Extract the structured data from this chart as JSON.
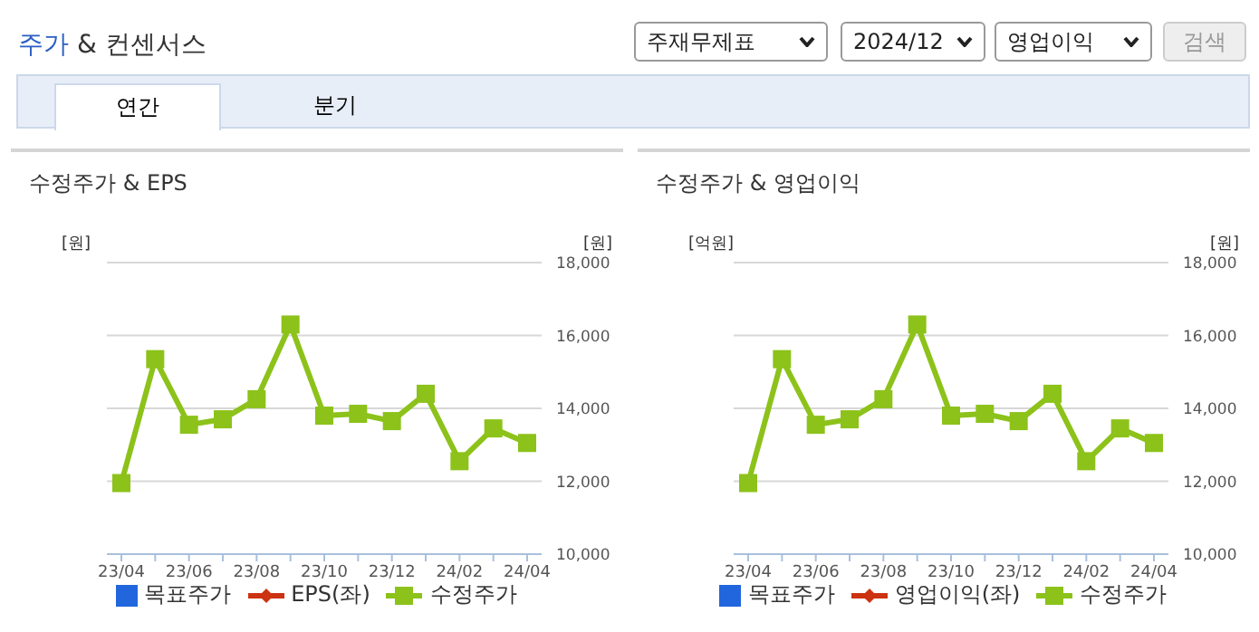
{
  "chart_data": [
    {
      "type": "line",
      "title": "수정주가 & EPS",
      "ylabel": "[원]",
      "y2label": "[원]",
      "annotations": [
        "주가 & 컨센서스",
        "주재무제표",
        "2024/12",
        "영업이익",
        "검색",
        "연간",
        "분기"
      ],
      "categories": [
        "23/04",
        null,
        "23/06",
        null,
        "23/08",
        null,
        "23/10",
        null,
        "23/12",
        null,
        "24/02",
        null,
        "24/04"
      ],
      "series": [
        {
          "name": "목표주가",
          "type": "scatter",
          "marker": "square",
          "color": "#2266dd",
          "values": [
            null,
            null,
            null,
            null,
            null,
            null,
            null,
            null,
            null,
            null,
            null,
            null,
            null
          ]
        },
        {
          "name": "EPS(좌)",
          "marker": "diamond",
          "color": "#cc3311",
          "values": [
            null,
            null,
            null,
            null,
            null,
            null,
            null,
            null,
            null,
            null,
            null,
            null,
            null
          ]
        },
        {
          "name": "수정주가",
          "marker": "square",
          "axis": "y2",
          "color": "#8cc21a",
          "values": [
            11950,
            15350,
            13550,
            13700,
            14250,
            16300,
            13800,
            13850,
            13650,
            14400,
            12550,
            13450,
            13050
          ]
        }
      ],
      "y2lim": [
        10000,
        18000
      ],
      "y2ticks": [
        {
          "value": 10000,
          "label": "10,000"
        },
        {
          "value": 12000,
          "label": "12,000"
        },
        {
          "value": 14000,
          "label": "14,000"
        },
        {
          "value": 16000,
          "label": "16,000"
        },
        {
          "value": 18000,
          "label": "18,000"
        }
      ],
      "grid": "y",
      "legend": "bottom"
    },
    {
      "type": "line",
      "title": "수정주가 & 영업이익",
      "ylabel": "[억원]",
      "y2label": "[원]",
      "categories": [
        "23/04",
        null,
        "23/06",
        null,
        "23/08",
        null,
        "23/10",
        null,
        "23/12",
        null,
        "24/02",
        null,
        "24/04"
      ],
      "series": [
        {
          "name": "목표주가",
          "type": "scatter",
          "marker": "square",
          "color": "#2266dd",
          "values": [
            null,
            null,
            null,
            null,
            null,
            null,
            null,
            null,
            null,
            null,
            null,
            null,
            null
          ]
        },
        {
          "name": "영업이익(좌)",
          "marker": "diamond",
          "color": "#cc3311",
          "values": [
            null,
            null,
            null,
            null,
            null,
            null,
            null,
            null,
            null,
            null,
            null,
            null,
            null
          ]
        },
        {
          "name": "수정주가",
          "marker": "square",
          "axis": "y2",
          "color": "#8cc21a",
          "values": [
            11950,
            15350,
            13550,
            13700,
            14250,
            16300,
            13800,
            13850,
            13650,
            14400,
            12550,
            13450,
            13050
          ]
        }
      ],
      "y2lim": [
        10000,
        18000
      ],
      "y2ticks": [
        {
          "value": 10000,
          "label": "10,000"
        },
        {
          "value": 12000,
          "label": "12,000"
        },
        {
          "value": 14000,
          "label": "14,000"
        },
        {
          "value": 16000,
          "label": "16,000"
        },
        {
          "value": 18000,
          "label": "18,000"
        }
      ],
      "grid": "y",
      "legend": "bottom"
    }
  ]
}
